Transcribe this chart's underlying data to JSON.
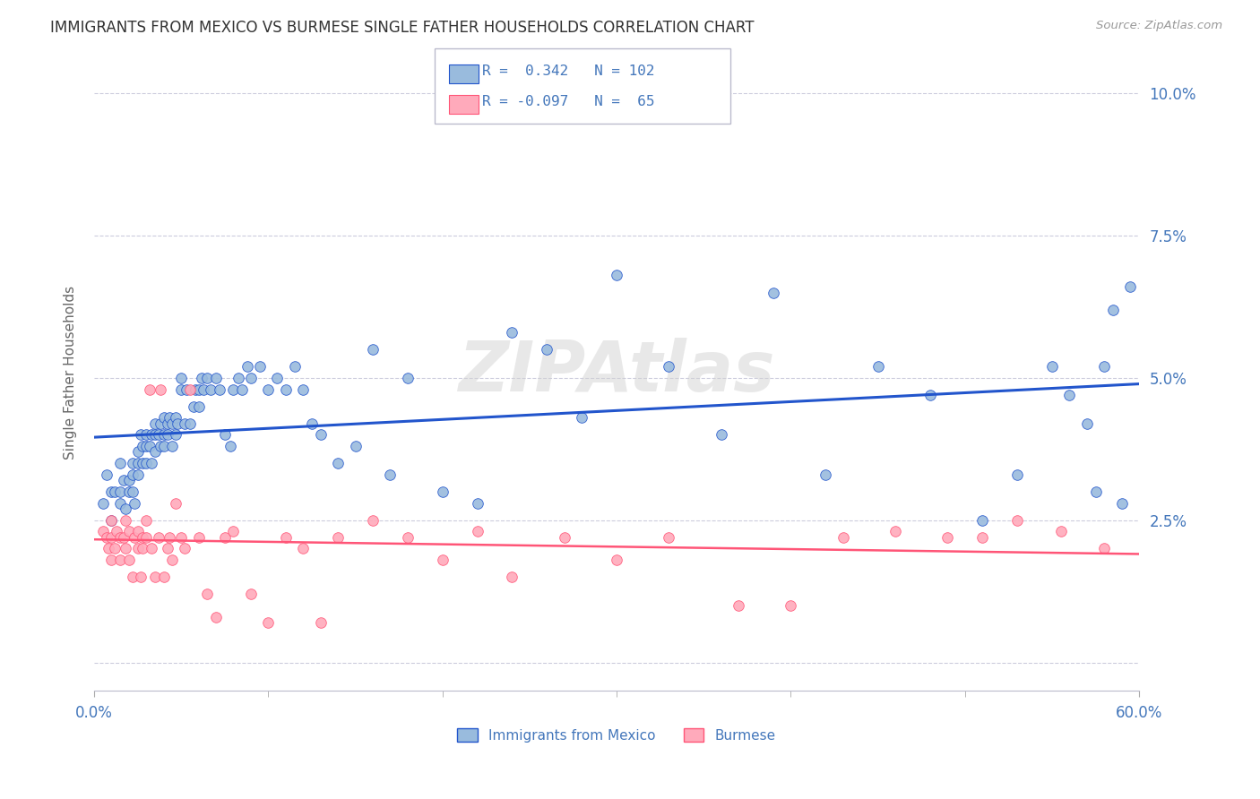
{
  "title": "IMMIGRANTS FROM MEXICO VS BURMESE SINGLE FATHER HOUSEHOLDS CORRELATION CHART",
  "source": "Source: ZipAtlas.com",
  "ylabel": "Single Father Households",
  "xlim": [
    0.0,
    0.6
  ],
  "ylim": [
    -0.005,
    0.107
  ],
  "legend_blue_r": "0.342",
  "legend_blue_n": "102",
  "legend_pink_r": "-0.097",
  "legend_pink_n": "65",
  "legend_blue_label": "Immigrants from Mexico",
  "legend_pink_label": "Burmese",
  "color_blue": "#99BBDD",
  "color_pink": "#FFAABB",
  "line_blue": "#2255CC",
  "line_pink": "#FF5577",
  "blue_x": [
    0.005,
    0.007,
    0.01,
    0.01,
    0.012,
    0.015,
    0.015,
    0.015,
    0.017,
    0.018,
    0.02,
    0.02,
    0.022,
    0.022,
    0.022,
    0.023,
    0.025,
    0.025,
    0.025,
    0.027,
    0.028,
    0.028,
    0.03,
    0.03,
    0.03,
    0.032,
    0.033,
    0.033,
    0.035,
    0.035,
    0.035,
    0.037,
    0.038,
    0.038,
    0.04,
    0.04,
    0.04,
    0.042,
    0.042,
    0.043,
    0.045,
    0.045,
    0.047,
    0.047,
    0.048,
    0.05,
    0.05,
    0.052,
    0.053,
    0.055,
    0.057,
    0.058,
    0.06,
    0.06,
    0.062,
    0.063,
    0.065,
    0.067,
    0.07,
    0.072,
    0.075,
    0.078,
    0.08,
    0.083,
    0.085,
    0.088,
    0.09,
    0.095,
    0.1,
    0.105,
    0.11,
    0.115,
    0.12,
    0.125,
    0.13,
    0.14,
    0.15,
    0.16,
    0.17,
    0.18,
    0.2,
    0.22,
    0.24,
    0.26,
    0.28,
    0.3,
    0.33,
    0.36,
    0.39,
    0.42,
    0.45,
    0.48,
    0.51,
    0.53,
    0.55,
    0.56,
    0.57,
    0.575,
    0.58,
    0.585,
    0.59,
    0.595
  ],
  "blue_y": [
    0.028,
    0.033,
    0.025,
    0.03,
    0.03,
    0.03,
    0.035,
    0.028,
    0.032,
    0.027,
    0.032,
    0.03,
    0.035,
    0.033,
    0.03,
    0.028,
    0.037,
    0.035,
    0.033,
    0.04,
    0.038,
    0.035,
    0.04,
    0.038,
    0.035,
    0.038,
    0.04,
    0.035,
    0.042,
    0.04,
    0.037,
    0.04,
    0.042,
    0.038,
    0.043,
    0.04,
    0.038,
    0.042,
    0.04,
    0.043,
    0.042,
    0.038,
    0.043,
    0.04,
    0.042,
    0.05,
    0.048,
    0.042,
    0.048,
    0.042,
    0.045,
    0.048,
    0.048,
    0.045,
    0.05,
    0.048,
    0.05,
    0.048,
    0.05,
    0.048,
    0.04,
    0.038,
    0.048,
    0.05,
    0.048,
    0.052,
    0.05,
    0.052,
    0.048,
    0.05,
    0.048,
    0.052,
    0.048,
    0.042,
    0.04,
    0.035,
    0.038,
    0.055,
    0.033,
    0.05,
    0.03,
    0.028,
    0.058,
    0.055,
    0.043,
    0.068,
    0.052,
    0.04,
    0.065,
    0.033,
    0.052,
    0.047,
    0.025,
    0.033,
    0.052,
    0.047,
    0.042,
    0.03,
    0.052,
    0.062,
    0.028,
    0.066
  ],
  "pink_x": [
    0.005,
    0.007,
    0.008,
    0.01,
    0.01,
    0.01,
    0.012,
    0.013,
    0.015,
    0.015,
    0.017,
    0.018,
    0.018,
    0.02,
    0.02,
    0.022,
    0.023,
    0.025,
    0.025,
    0.027,
    0.028,
    0.028,
    0.03,
    0.03,
    0.032,
    0.033,
    0.035,
    0.037,
    0.038,
    0.04,
    0.042,
    0.043,
    0.045,
    0.047,
    0.05,
    0.052,
    0.055,
    0.06,
    0.065,
    0.07,
    0.075,
    0.08,
    0.09,
    0.1,
    0.11,
    0.12,
    0.13,
    0.14,
    0.16,
    0.18,
    0.2,
    0.22,
    0.24,
    0.27,
    0.3,
    0.33,
    0.37,
    0.4,
    0.43,
    0.46,
    0.49,
    0.51,
    0.53,
    0.555,
    0.58
  ],
  "pink_y": [
    0.023,
    0.022,
    0.02,
    0.022,
    0.025,
    0.018,
    0.02,
    0.023,
    0.022,
    0.018,
    0.022,
    0.02,
    0.025,
    0.018,
    0.023,
    0.015,
    0.022,
    0.02,
    0.023,
    0.015,
    0.022,
    0.02,
    0.025,
    0.022,
    0.048,
    0.02,
    0.015,
    0.022,
    0.048,
    0.015,
    0.02,
    0.022,
    0.018,
    0.028,
    0.022,
    0.02,
    0.048,
    0.022,
    0.012,
    0.008,
    0.022,
    0.023,
    0.012,
    0.007,
    0.022,
    0.02,
    0.007,
    0.022,
    0.025,
    0.022,
    0.018,
    0.023,
    0.015,
    0.022,
    0.018,
    0.022,
    0.01,
    0.01,
    0.022,
    0.023,
    0.022,
    0.022,
    0.025,
    0.023,
    0.02
  ],
  "watermark": "ZIPAtlas",
  "background_color": "#FFFFFF",
  "grid_color": "#CCCCDD",
  "title_color": "#333333",
  "axis_color": "#4477BB"
}
